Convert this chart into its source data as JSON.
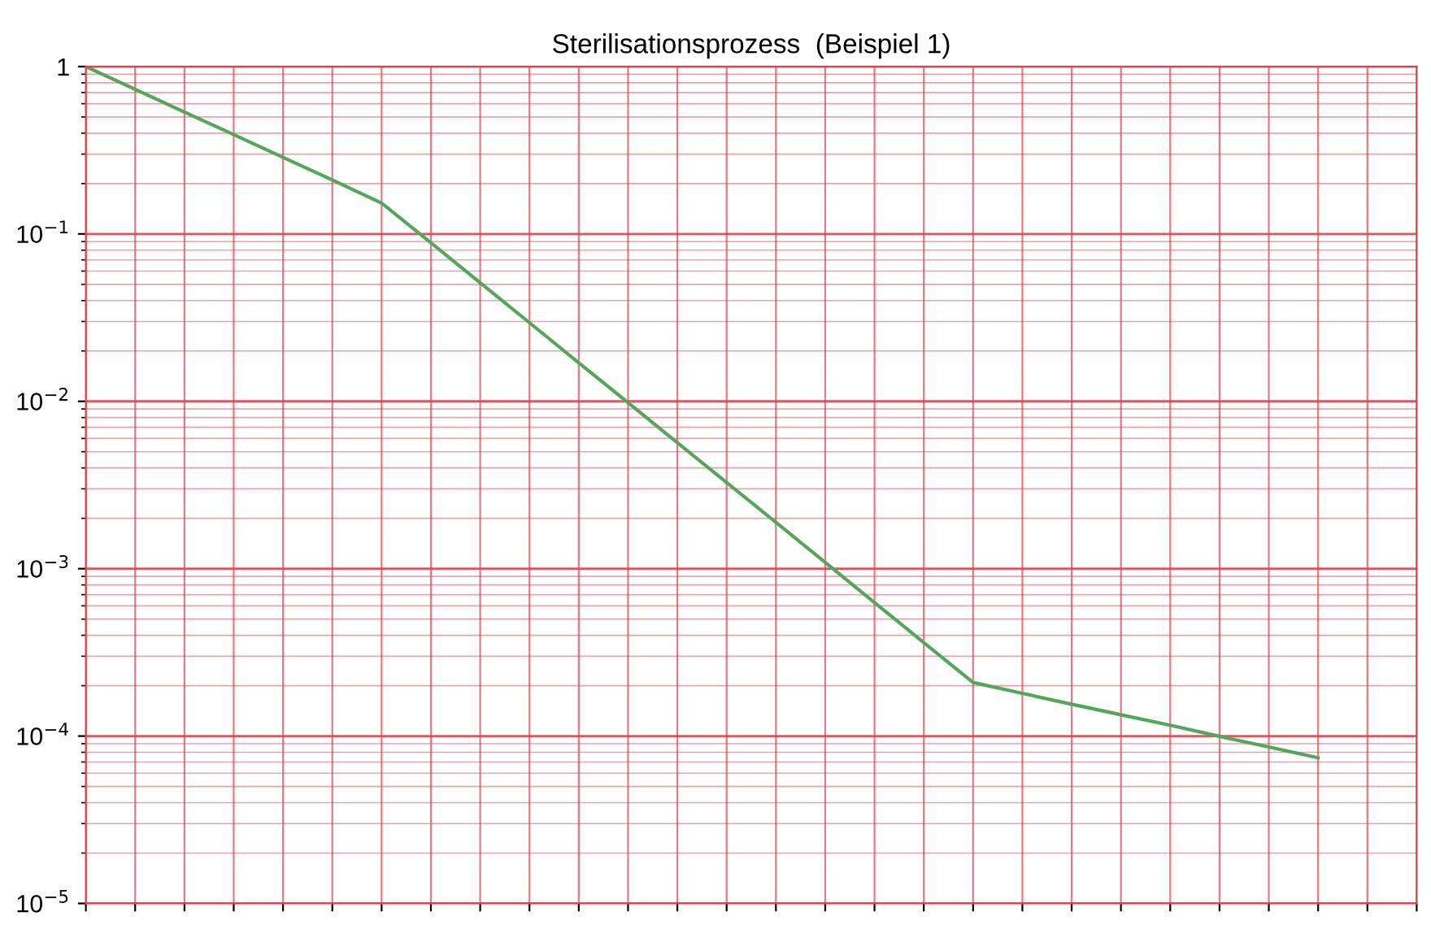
{
  "chart_data": {
    "type": "line",
    "title": "Sterilisationsprozess  (Beispiel 1)",
    "categories": [
      null,
      null,
      null,
      null,
      null,
      null,
      null,
      null,
      null,
      null,
      null,
      null,
      null,
      null,
      null,
      null,
      null,
      null,
      null,
      null,
      null,
      null,
      null,
      null,
      null,
      null,
      null,
      null
    ],
    "series": [
      {
        "color": "#55a55a",
        "values": [
          1,
          0.732,
          0.535,
          0.392,
          0.287,
          0.21,
          0.153,
          0.0885,
          0.0511,
          0.0295,
          0.017,
          0.00982,
          0.00566,
          0.00327,
          0.00189,
          0.00109,
          0.000628,
          0.000362,
          0.000209,
          0.00018,
          0.000155,
          0.000134,
          0.000116,
          9.97e-05,
          8.6e-05,
          7.41e-05,
          null,
          null
        ]
      }
    ],
    "log": "y",
    "ylim": [
      1e-05,
      1
    ],
    "yticks": [
      {
        "value": 1,
        "label": "1"
      },
      {
        "value": 0.1,
        "label": "10$^{−1}$"
      },
      {
        "value": 0.01,
        "label": "10$^{−2}$"
      },
      {
        "value": 0.001,
        "label": "10$^{−3}$"
      },
      {
        "value": 0.0001,
        "label": "10$^{−4}$"
      },
      {
        "value": 1e-05,
        "label": "10$^{−5}$"
      },
      {
        "value": 2e-05,
        "label": null
      },
      {
        "value": 3e-05,
        "label": null
      },
      {
        "value": 4e-05,
        "label": null
      },
      {
        "value": 5e-05,
        "label": null
      },
      {
        "value": 6e-05,
        "label": null
      },
      {
        "value": 7e-05,
        "label": null
      },
      {
        "value": 8e-05,
        "label": null
      },
      {
        "value": 9e-05,
        "label": null
      },
      {
        "value": 0.0002,
        "label": null
      },
      {
        "value": 0.0003,
        "label": null
      },
      {
        "value": 0.0004,
        "label": null
      },
      {
        "value": 0.0005,
        "label": null
      },
      {
        "value": 0.0006,
        "label": null
      },
      {
        "value": 0.0007,
        "label": null
      },
      {
        "value": 0.0008,
        "label": null
      },
      {
        "value": 0.0009,
        "label": null
      },
      {
        "value": 0.002,
        "label": null
      },
      {
        "value": 0.003,
        "label": null
      },
      {
        "value": 0.004,
        "label": null
      },
      {
        "value": 0.005,
        "label": null
      },
      {
        "value": 0.006,
        "label": null
      },
      {
        "value": 0.007,
        "label": null
      },
      {
        "value": 0.008,
        "label": null
      },
      {
        "value": 0.009,
        "label": null
      },
      {
        "value": 0.02,
        "label": null
      },
      {
        "value": 0.03,
        "label": null
      },
      {
        "value": 0.04,
        "label": null
      },
      {
        "value": 0.05,
        "label": null
      },
      {
        "value": 0.06,
        "label": null
      },
      {
        "value": 0.07,
        "label": null
      },
      {
        "value": 0.08,
        "label": null
      },
      {
        "value": 0.09,
        "label": null
      },
      {
        "value": 0.2,
        "label": null
      },
      {
        "value": 0.3,
        "label": null
      },
      {
        "value": 0.4,
        "label": null
      },
      {
        "value": 0.5,
        "label": null
      },
      {
        "value": 0.6,
        "label": null
      },
      {
        "value": 0.7,
        "label": null
      },
      {
        "value": 0.8,
        "label": null
      },
      {
        "value": 0.9,
        "label": null
      }
    ],
    "grid": true,
    "tick_labels": "y",
    "marker": "none",
    "line_style": "solid"
  }
}
